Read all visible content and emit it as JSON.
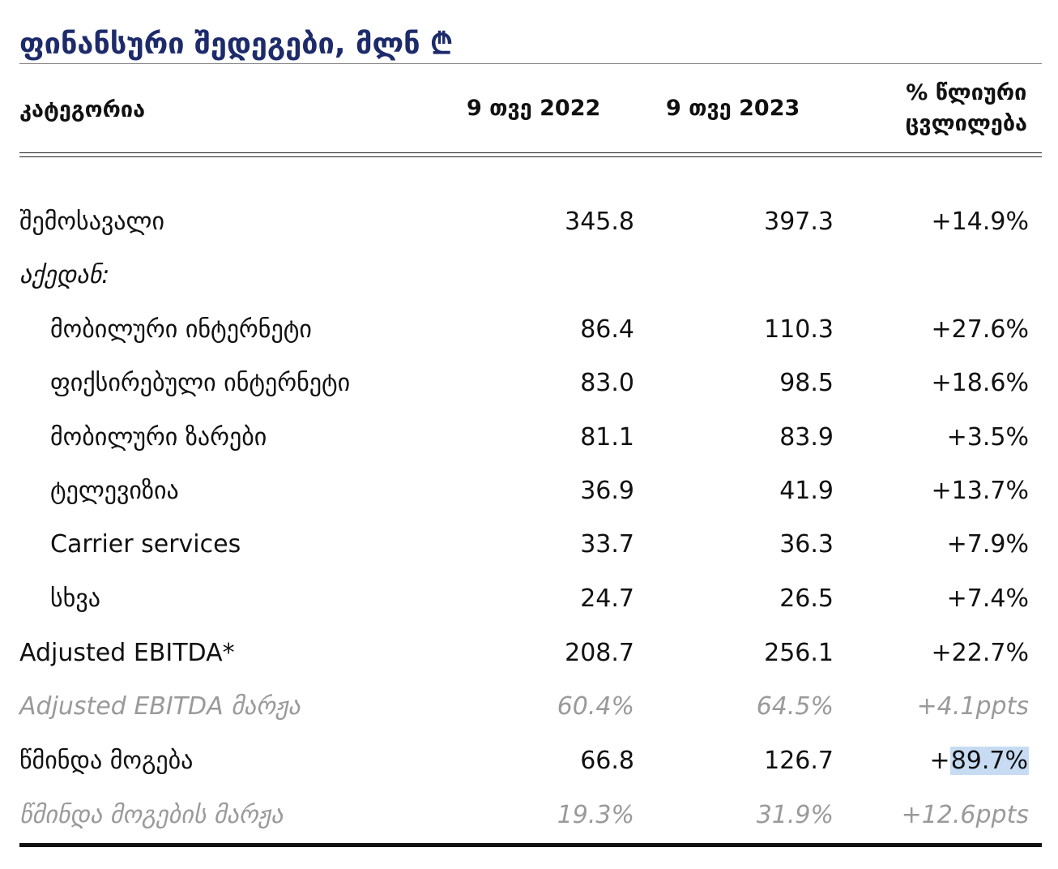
{
  "title": "ფინანსური შედეგები, მლნ ₾",
  "headers": {
    "category": "კატეგორია",
    "col1": "9 თვე 2022",
    "col2": "9 თვე 2023",
    "col3_line1": "% წლიური",
    "col3_line2": "ცვლილება"
  },
  "rows": [
    {
      "label": "შემოსავალი",
      "v1": "345.8",
      "v2": "397.3",
      "v3": "+14.9%"
    },
    {
      "label": "აქედან:",
      "v1": "",
      "v2": "",
      "v3": ""
    },
    {
      "label": "მობილური ინტერნეტი",
      "v1": "86.4",
      "v2": "110.3",
      "v3": "+27.6%"
    },
    {
      "label": "ფიქსირებული ინტერნეტი",
      "v1": "83.0",
      "v2": "98.5",
      "v3": "+18.6%"
    },
    {
      "label": "მობილური ზარები",
      "v1": "81.1",
      "v2": "83.9",
      "v3": "+3.5%"
    },
    {
      "label": "ტელევიზია",
      "v1": "36.9",
      "v2": "41.9",
      "v3": "+13.7%"
    },
    {
      "label": "Carrier services",
      "v1": "33.7",
      "v2": "36.3",
      "v3": "+7.9%"
    },
    {
      "label": "სხვა",
      "v1": "24.7",
      "v2": "26.5",
      "v3": "+7.4%"
    },
    {
      "label": "Adjusted EBITDA*",
      "v1": "208.7",
      "v2": "256.1",
      "v3": "+22.7%"
    },
    {
      "label": "Adjusted EBITDA მარჟა",
      "v1": "60.4%",
      "v2": "64.5%",
      "v3": "+4.1ppts"
    },
    {
      "label": "წმინდა მოგება",
      "v1": "66.8",
      "v2": "126.7",
      "v3_prefix": "+",
      "v3_selected": "89.7%"
    },
    {
      "label": "წმინდა მოგების მარჟა",
      "v1": "19.3%",
      "v2": "31.9%",
      "v3": "+12.6ppts"
    }
  ],
  "colors": {
    "title": "#1d2b6b",
    "muted": "#9a9a9a",
    "selection": "#c7dcf3"
  }
}
